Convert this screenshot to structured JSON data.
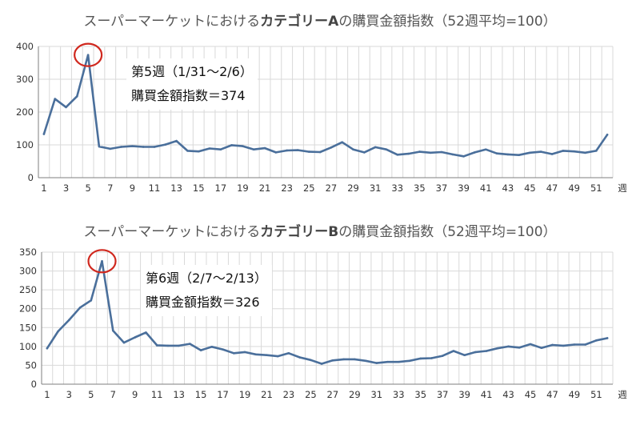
{
  "chart_data": [
    {
      "type": "line",
      "title_prefix": "スーパーマーケットにおける",
      "title_bold": "カテゴリーA",
      "title_suffix": "の購買金額指数（52週平均=100）",
      "xlabel": "週",
      "ylabel": "",
      "ylim": [
        0,
        400
      ],
      "yticks": [
        0,
        100,
        200,
        300,
        400
      ],
      "xticks": [
        1,
        3,
        5,
        7,
        9,
        11,
        13,
        15,
        17,
        19,
        21,
        23,
        25,
        27,
        29,
        31,
        33,
        35,
        37,
        39,
        41,
        43,
        45,
        47,
        49,
        51
      ],
      "grid": true,
      "line_color": "#4A6F9B",
      "highlight_color": "#D0281E",
      "highlight_week": 5,
      "annotation": {
        "line1": "第5週（1/31～2/6）",
        "line2": "購買金額指数＝374"
      },
      "x": [
        1,
        2,
        3,
        4,
        5,
        6,
        7,
        8,
        9,
        10,
        11,
        12,
        13,
        14,
        15,
        16,
        17,
        18,
        19,
        20,
        21,
        22,
        23,
        24,
        25,
        26,
        27,
        28,
        29,
        30,
        31,
        32,
        33,
        34,
        35,
        36,
        37,
        38,
        39,
        40,
        41,
        42,
        43,
        44,
        45,
        46,
        47,
        48,
        49,
        50,
        51,
        52
      ],
      "values": [
        133,
        240,
        215,
        248,
        374,
        95,
        88,
        94,
        96,
        94,
        94,
        101,
        112,
        82,
        80,
        89,
        86,
        99,
        96,
        86,
        90,
        77,
        83,
        84,
        79,
        78,
        92,
        108,
        86,
        77,
        93,
        86,
        70,
        73,
        79,
        76,
        78,
        71,
        65,
        77,
        86,
        74,
        71,
        69,
        76,
        79,
        72,
        82,
        80,
        76,
        82,
        131
      ]
    },
    {
      "type": "line",
      "title_prefix": "スーパーマーケットにおける",
      "title_bold": "カテゴリーB",
      "title_suffix": "の購買金額指数（52週平均=100）",
      "xlabel": "週",
      "ylabel": "",
      "ylim": [
        0,
        350
      ],
      "yticks": [
        0,
        50,
        100,
        150,
        200,
        250,
        300,
        350
      ],
      "xticks": [
        1,
        3,
        5,
        7,
        9,
        11,
        13,
        15,
        17,
        19,
        21,
        23,
        25,
        27,
        29,
        31,
        33,
        35,
        37,
        39,
        41,
        43,
        45,
        47,
        49,
        51
      ],
      "grid": true,
      "line_color": "#4A6F9B",
      "highlight_color": "#D0281E",
      "highlight_week": 6,
      "annotation": {
        "line1": "第6週（2/7～2/13）",
        "line2": "購買金額指数＝326"
      },
      "x": [
        1,
        2,
        3,
        4,
        5,
        6,
        7,
        8,
        9,
        10,
        11,
        12,
        13,
        14,
        15,
        16,
        17,
        18,
        19,
        20,
        21,
        22,
        23,
        24,
        25,
        26,
        27,
        28,
        29,
        30,
        31,
        32,
        33,
        34,
        35,
        36,
        37,
        38,
        39,
        40,
        41,
        42,
        43,
        44,
        45,
        46,
        47,
        48,
        49,
        50,
        51,
        52
      ],
      "values": [
        95,
        140,
        170,
        203,
        222,
        326,
        142,
        110,
        124,
        137,
        103,
        102,
        102,
        107,
        90,
        99,
        92,
        82,
        85,
        79,
        77,
        74,
        82,
        71,
        64,
        54,
        63,
        66,
        66,
        62,
        56,
        59,
        59,
        62,
        68,
        69,
        75,
        88,
        77,
        85,
        88,
        95,
        100,
        97,
        106,
        96,
        104,
        102,
        105,
        105,
        116,
        122
      ]
    }
  ]
}
